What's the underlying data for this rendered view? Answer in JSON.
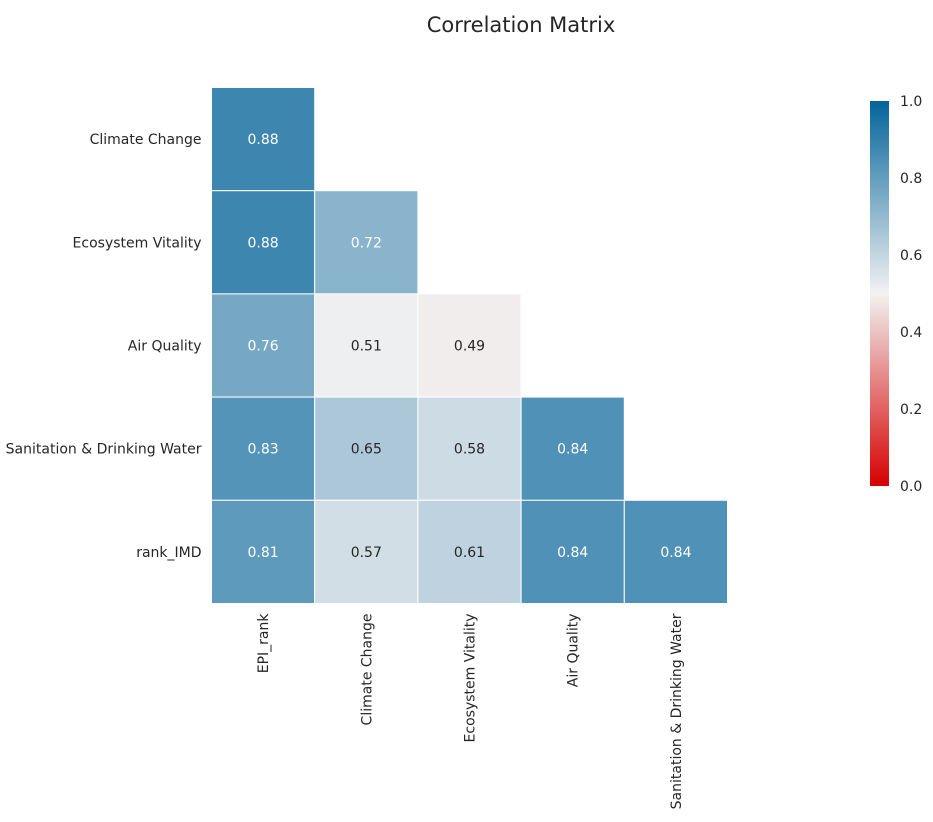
{
  "chart_data": {
    "type": "heatmap",
    "title": "Correlation Matrix",
    "row_labels": [
      "Climate Change",
      "Ecosystem Vitality",
      "Air Quality",
      "Sanitation & Drinking Water",
      "rank_IMD"
    ],
    "column_labels": [
      "EPI_rank",
      "Climate Change",
      "Ecosystem Vitality",
      "Air Quality",
      "Sanitation & Drinking Water"
    ],
    "values": [
      [
        0.88,
        null,
        null,
        null,
        null
      ],
      [
        0.88,
        0.72,
        null,
        null,
        null
      ],
      [
        0.76,
        0.51,
        0.49,
        null,
        null
      ],
      [
        0.83,
        0.65,
        0.58,
        0.84,
        null
      ],
      [
        0.81,
        0.57,
        0.61,
        0.84,
        0.84
      ]
    ],
    "value_labels": [
      [
        "0.88",
        "",
        "",
        "",
        ""
      ],
      [
        "0.88",
        "0.72",
        "",
        "",
        ""
      ],
      [
        "0.76",
        "0.51",
        "0.49",
        "",
        ""
      ],
      [
        "0.83",
        "0.65",
        "0.58",
        "0.84",
        ""
      ],
      [
        "0.81",
        "0.57",
        "0.61",
        "0.84",
        "0.84"
      ]
    ],
    "mask": "upper-triangle",
    "colorbar": {
      "range": [
        0,
        1
      ],
      "ticks": [
        0.0,
        0.2,
        0.4,
        0.6,
        0.8,
        1.0
      ],
      "tick_labels": [
        "0.0",
        "0.2",
        "0.4",
        "0.6",
        "0.8",
        "1.0"
      ],
      "colormap": "diverging red-white-blue",
      "color_low": "#d60000",
      "color_mid": "#f2f2f2",
      "color_high": "#04649b"
    },
    "grid": false,
    "colorbar_placement": "right"
  }
}
